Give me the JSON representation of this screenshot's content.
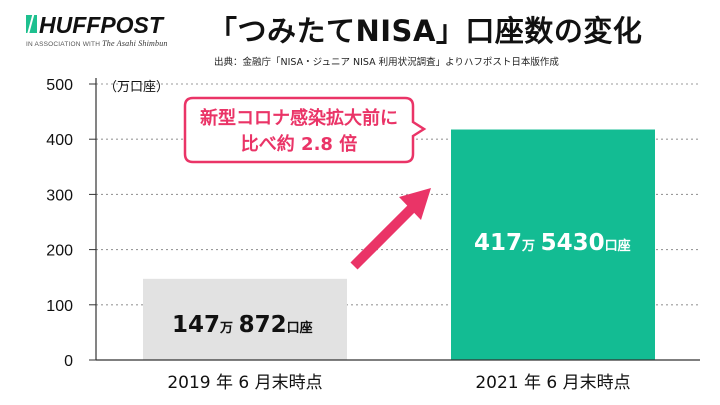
{
  "logo": {
    "text": "HUFFPOST",
    "sub_prefix": "IN ASSOCIATION WITH",
    "sub_partner": "The Asahi Shimbun"
  },
  "title": "「つみたてNISA」口座数の変化",
  "source": "出典：金融庁「NISA・ジュニア NISA 利用状況調査」よりハフポスト日本版作成",
  "unit_label": "（万口座）",
  "callout": {
    "line1": "新型コロナ感染拡大前に",
    "line2": "比べ約 2.8 倍"
  },
  "colors": {
    "bar_2019": "#e2e2e2",
    "bar_2021": "#13bc93",
    "accent": "#ea3467",
    "logo_green": "#1ec08f"
  },
  "bar_labels": [
    {
      "a": "147",
      "a_unit": "万",
      "b": "872",
      "b_unit": "口座",
      "color": "#111111"
    },
    {
      "a": "417",
      "a_unit": "万",
      "b": "5430",
      "b_unit": "口座",
      "color": "#ffffff"
    }
  ],
  "chart_data": {
    "type": "bar",
    "title": "「つみたてNISA」口座数の変化",
    "categories": [
      "2019 年 6 月末時点",
      "2021 年 6 月末時点"
    ],
    "values": [
      147.0872,
      417.543
    ],
    "ylabel": "（万口座）",
    "ylim": [
      0,
      500
    ],
    "yticks": [
      0,
      100,
      200,
      300,
      400,
      500
    ],
    "grid": true,
    "annotation": "新型コロナ感染拡大前に比べ約 2.8 倍"
  }
}
